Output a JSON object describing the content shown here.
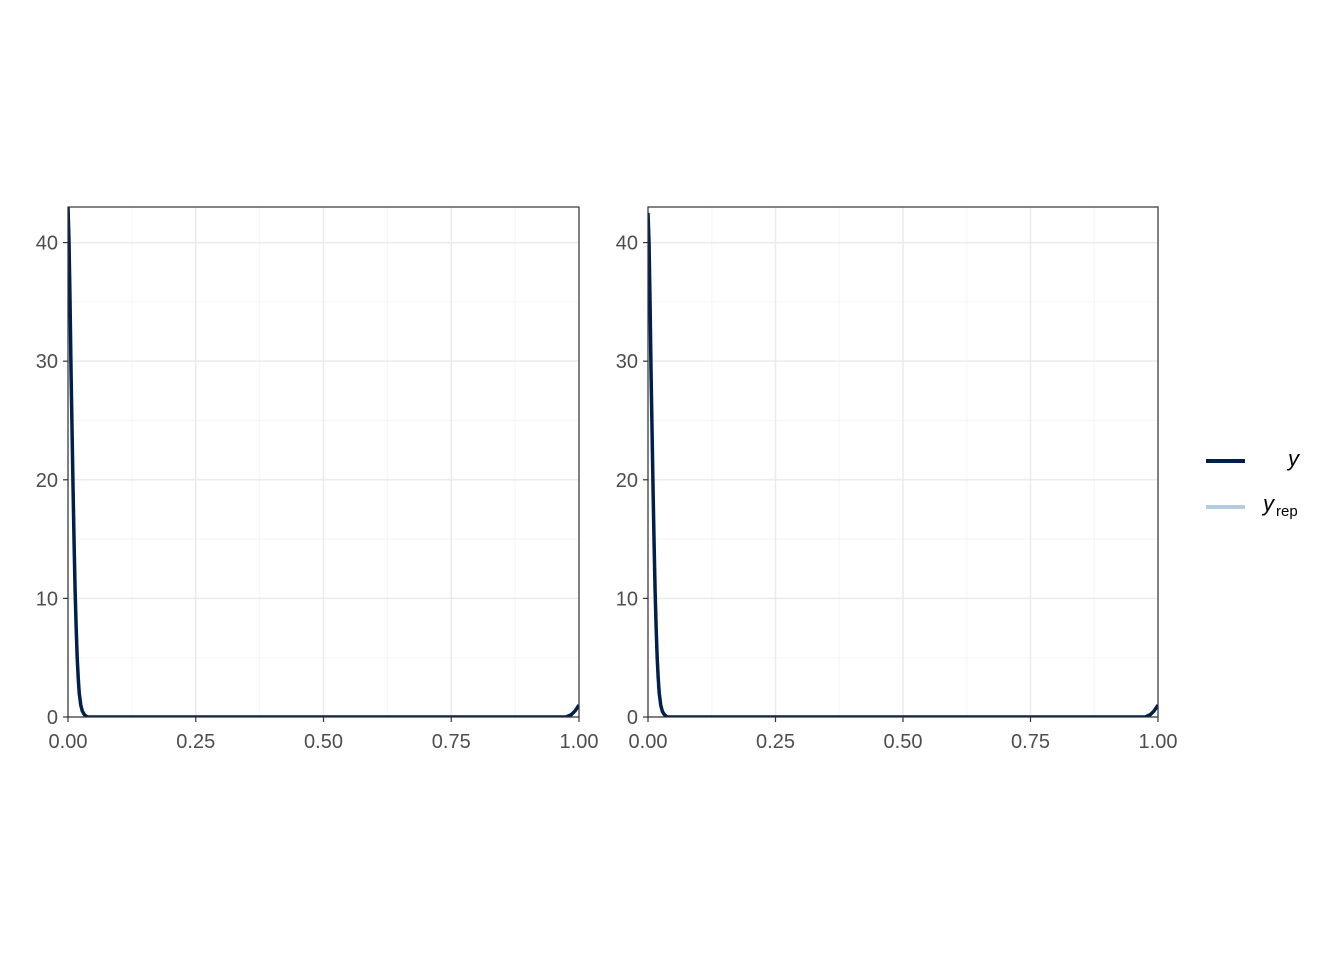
{
  "chart_data": [
    {
      "type": "line",
      "panel": 1,
      "xlim": [
        0,
        1
      ],
      "ylim": [
        0,
        43
      ],
      "x_ticks": [
        0,
        0.25,
        0.5,
        0.75,
        1
      ],
      "x_tick_labels": [
        "0.00",
        "0.25",
        "0.50",
        "0.75",
        "1.00"
      ],
      "y_ticks": [
        0,
        10,
        20,
        30,
        40
      ],
      "y_tick_labels": [
        "0",
        "10",
        "20",
        "30",
        "40"
      ],
      "grid": true,
      "series": [
        {
          "name": "y",
          "color": "#011f4b",
          "x": [
            0,
            0.002,
            0.004,
            0.006,
            0.008,
            0.01,
            0.012,
            0.014,
            0.016,
            0.018,
            0.02,
            0.022,
            0.025,
            0.028,
            0.032,
            0.036,
            0.04,
            0.1,
            0.3,
            0.5,
            0.7,
            0.9,
            0.975,
            0.985,
            0.992,
            1.0
          ],
          "y": [
            43,
            40,
            35,
            29,
            24,
            19,
            14.5,
            10.5,
            7.5,
            5,
            3.3,
            2,
            1,
            0.5,
            0.2,
            0.05,
            0,
            0,
            0,
            0,
            0,
            0,
            0,
            0.2,
            0.5,
            1.0
          ]
        },
        {
          "name": "y_rep",
          "color": "#b3cde0",
          "x": [
            0,
            0.002,
            0.004,
            0.006,
            0.008,
            0.01,
            0.012,
            0.014,
            0.016,
            0.018,
            0.02,
            0.022,
            0.025,
            0.028,
            0.032,
            0.036,
            0.04,
            0.1,
            0.3,
            0.5,
            0.7,
            0.9,
            0.975,
            0.985,
            0.992,
            1.0
          ],
          "y": [
            42.5,
            39.5,
            34.5,
            28.5,
            23.5,
            18.7,
            14.2,
            10.3,
            7.3,
            4.9,
            3.2,
            1.9,
            0.95,
            0.45,
            0.18,
            0.04,
            0,
            0,
            0,
            0,
            0,
            0,
            0,
            0.18,
            0.45,
            0.9
          ]
        }
      ]
    },
    {
      "type": "line",
      "panel": 2,
      "xlim": [
        0,
        1
      ],
      "ylim": [
        0,
        43
      ],
      "x_ticks": [
        0,
        0.25,
        0.5,
        0.75,
        1
      ],
      "x_tick_labels": [
        "0.00",
        "0.25",
        "0.50",
        "0.75",
        "1.00"
      ],
      "y_ticks": [
        0,
        10,
        20,
        30,
        40
      ],
      "y_tick_labels": [
        "0",
        "10",
        "20",
        "30",
        "40"
      ],
      "grid": true,
      "series": [
        {
          "name": "y",
          "color": "#011f4b",
          "x": [
            0,
            0.002,
            0.004,
            0.006,
            0.008,
            0.01,
            0.012,
            0.014,
            0.016,
            0.018,
            0.02,
            0.022,
            0.025,
            0.028,
            0.032,
            0.036,
            0.04,
            0.1,
            0.3,
            0.5,
            0.7,
            0.9,
            0.975,
            0.985,
            0.992,
            1.0
          ],
          "y": [
            42.5,
            40,
            35,
            29,
            24,
            19,
            14.5,
            10.5,
            7.5,
            5,
            3.3,
            2,
            1,
            0.5,
            0.2,
            0.05,
            0,
            0,
            0,
            0,
            0,
            0,
            0,
            0.2,
            0.5,
            1.0
          ]
        },
        {
          "name": "y_rep",
          "color": "#b3cde0",
          "x": [
            0,
            0.002,
            0.004,
            0.006,
            0.008,
            0.01,
            0.012,
            0.014,
            0.016,
            0.018,
            0.02,
            0.022,
            0.025,
            0.028,
            0.032,
            0.036,
            0.04,
            0.1,
            0.3,
            0.5,
            0.7,
            0.9,
            0.975,
            0.985,
            0.992,
            1.0
          ],
          "y": [
            42,
            39.5,
            34.5,
            28.5,
            23.5,
            18.7,
            14.2,
            10.3,
            7.3,
            4.9,
            3.2,
            1.9,
            0.95,
            0.45,
            0.18,
            0.04,
            0,
            0,
            0,
            0,
            0,
            0,
            0,
            0.18,
            0.45,
            0.9
          ]
        }
      ]
    }
  ],
  "legend": {
    "placement": "right",
    "items": [
      {
        "label": "y",
        "subscript": "",
        "color": "#011f4b"
      },
      {
        "label": "y",
        "subscript": "rep",
        "color": "#b3cde0"
      }
    ]
  },
  "colors": {
    "panel_border": "#333333",
    "grid_major": "#ebebeb",
    "grid_minor": "#f5f5f5",
    "tick_text": "#4d4d4d"
  }
}
